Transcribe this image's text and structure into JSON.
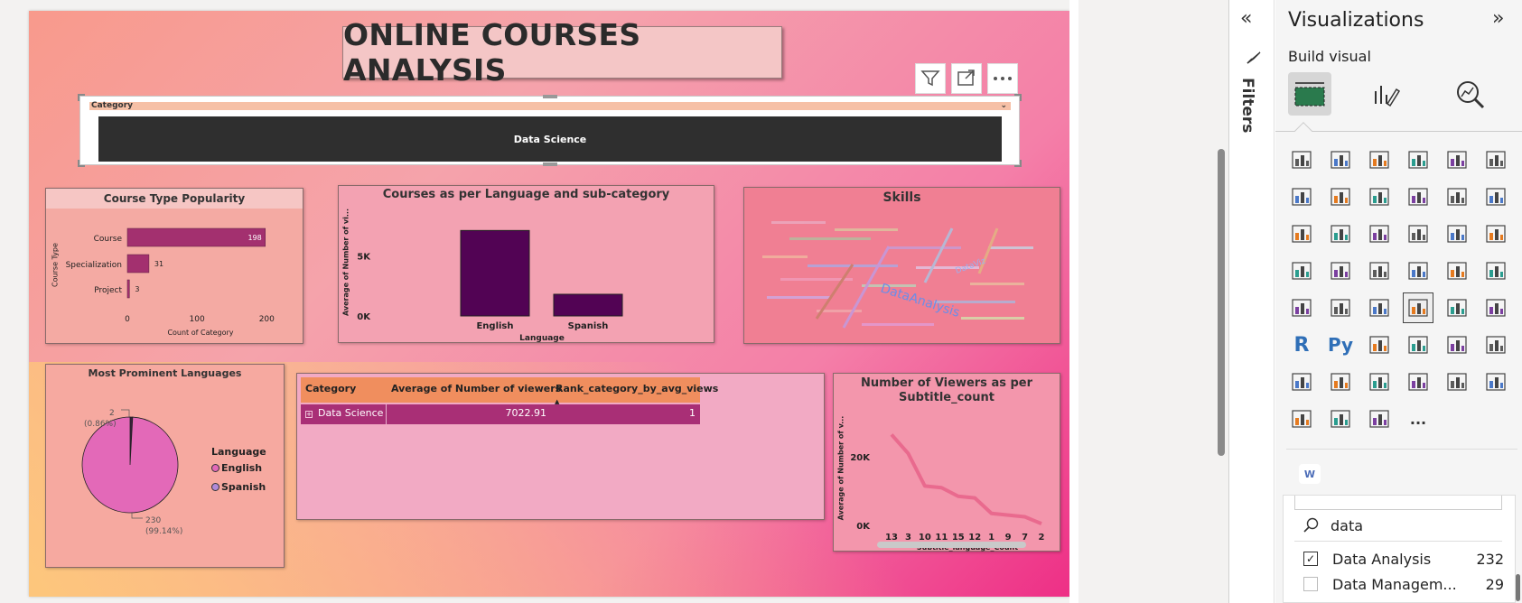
{
  "report": {
    "title": "ONLINE COURSES ANALYSIS",
    "slicer": {
      "header": "Category",
      "selected": "Data Science"
    },
    "visual_header_buttons": {
      "filter_icon": "filter-icon",
      "focus_icon": "focus-mode-icon",
      "more_icon": "more-options-icon"
    },
    "course_type": {
      "title": "Course Type Popularity",
      "ylabel": "Course Type",
      "xlabel": "Count of Category"
    },
    "languages_subcat": {
      "title": "Courses as per Language and sub-category",
      "ylabel": "Average of Number of vi...",
      "xlabel": "Language"
    },
    "skills": {
      "title": "Skills"
    },
    "prominent_languages": {
      "title": "Most Prominent Languages",
      "legend_title": "Language",
      "label_spanish_count": "2",
      "label_spanish_pct": "(0.86%)",
      "label_english_count": "230",
      "label_english_pct": "(99.14%)"
    },
    "table": {
      "headers": [
        "Category",
        "Average of Number of viewers",
        "Rank_category_by_avg_views"
      ],
      "rows": [
        {
          "category": "Data Science",
          "avg": "7022.91",
          "rank": "1"
        }
      ]
    },
    "subtitle_chart": {
      "title_line1": "Number of Viewers as per",
      "title_line2": "Subtitle_count",
      "ylabel": "Average of Number of v...",
      "xlabel": "Subtitle_language_Count"
    }
  },
  "chart_data": [
    {
      "type": "bar",
      "orientation": "horizontal",
      "title": "Course Type Popularity",
      "categories": [
        "Course",
        "Specialization",
        "Project"
      ],
      "values": [
        198,
        31,
        3
      ],
      "xlabel": "Count of Category",
      "ylabel": "Course Type",
      "xticks": [
        "0",
        "100",
        "200"
      ],
      "xlim": [
        0,
        210
      ],
      "color": "#a3306f"
    },
    {
      "type": "bar",
      "title": "Courses as per Language and sub-category",
      "categories": [
        "English",
        "Spanish"
      ],
      "values": [
        7100,
        1800
      ],
      "yticks": [
        "0K",
        "5K"
      ],
      "ylim": [
        0,
        7800
      ],
      "xlabel": "Language",
      "ylabel": "Average of Number of vi...",
      "color": "#520354"
    },
    {
      "type": "pie",
      "title": "Most Prominent Languages",
      "labels": [
        "English",
        "Spanish"
      ],
      "values": [
        230,
        2
      ],
      "percent": [
        "99.14%",
        "0.86%"
      ],
      "colors": [
        "#e369b8",
        "#3b1f3c"
      ],
      "legend": "right"
    },
    {
      "type": "line",
      "title": "Number of Viewers as per Subtitle_count",
      "categories": [
        "13",
        "3",
        "10",
        "11",
        "15",
        "12",
        "1",
        "9",
        "7",
        "2"
      ],
      "values": [
        26500,
        21000,
        11500,
        11000,
        8500,
        8000,
        3500,
        3000,
        2500,
        500
      ],
      "yticks": [
        "0K",
        "20K"
      ],
      "ylim": [
        0,
        29000
      ],
      "xlabel": "Subtitle_language_Count",
      "ylabel": "Average of Number of v...",
      "color": "#e96a8e"
    }
  ],
  "pane": {
    "filters_label": "Filters",
    "filters_collapse_icon": "double-chevron-left-icon",
    "filter_funnel_icon": "funnel-icon",
    "title": "Visualizations",
    "expand_icon": "double-chevron-right-icon",
    "build_visual": "Build visual",
    "search_value": "data",
    "more_label": "...",
    "w_badge": "W",
    "filter_items": [
      {
        "label": "Data Analysis",
        "count": "232",
        "checked": true
      },
      {
        "label": "Data Managem...",
        "count": "29",
        "checked": false
      }
    ]
  }
}
